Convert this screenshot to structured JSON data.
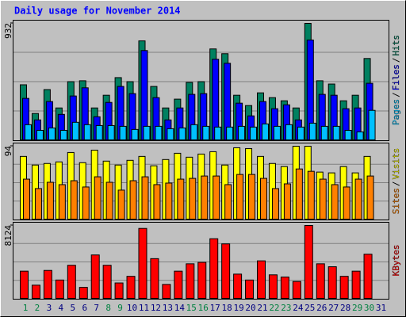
{
  "chart_data": {
    "type": "bar",
    "title": "Daily usage for November 2014",
    "categories": [
      "1",
      "2",
      "3",
      "4",
      "5",
      "6",
      "7",
      "8",
      "9",
      "10",
      "11",
      "12",
      "13",
      "14",
      "15",
      "16",
      "17",
      "18",
      "19",
      "20",
      "21",
      "22",
      "23",
      "24",
      "25",
      "26",
      "27",
      "28",
      "29",
      "30",
      "31"
    ],
    "weekends": [
      0,
      1,
      7,
      8,
      14,
      15,
      21,
      22,
      28,
      29
    ],
    "weekend_color": "#008040",
    "weekday_color": "#000080",
    "separator": "/",
    "grid": true,
    "panels": [
      {
        "ylim": [
          0,
          932
        ],
        "yticks": [
          932
        ],
        "series": [
          {
            "name": "Hits",
            "color": "#008060",
            "values": [
              444,
              216,
              406,
              260,
              469,
              476,
              260,
              361,
              501,
              469,
              793,
              431,
              260,
              330,
              463,
              469,
              729,
              691,
              361,
              279,
              380,
              342,
              317,
              260,
              932,
              476,
              450,
              317,
              361,
              653,
              null
            ]
          },
          {
            "name": "Files",
            "color": "#0000ff",
            "values": [
              336,
              165,
              311,
              209,
              355,
              420,
              190,
              304,
              431,
              374,
              716,
              342,
              165,
              260,
              368,
              374,
              647,
              615,
              298,
              197,
              311,
              254,
              285,
              165,
              800,
              368,
              361,
              254,
              260,
              456,
              null
            ]
          },
          {
            "name": "Pages",
            "color": "#00c0ff",
            "values": [
              127,
              82,
              101,
              82,
              146,
              127,
              120,
              120,
              114,
              89,
              114,
              114,
              95,
              101,
              127,
              114,
              108,
              108,
              114,
              108,
              133,
              114,
              127,
              108,
              139,
              114,
              114,
              82,
              70,
              241,
              null
            ]
          }
        ]
      },
      {
        "ylim": [
          0,
          94
        ],
        "yticks": [
          94
        ],
        "series": [
          {
            "name": "Visits",
            "color": "#ffff00",
            "values": [
              81,
              70,
              72,
              74,
              86,
              73,
              89,
              75,
              70,
              76,
              81,
              69,
              77,
              85,
              80,
              84,
              87,
              70,
              92,
              91,
              81,
              72,
              68,
              94,
              94,
              61,
              60,
              68,
              60,
              81,
              null
            ]
          },
          {
            "name": "Sites",
            "color": "#ff8000",
            "values": [
              52,
              40,
              48,
              45,
              50,
              42,
              55,
              48,
              38,
              50,
              55,
              45,
              47,
              52,
              53,
              56,
              56,
              45,
              58,
              58,
              53,
              40,
              46,
              65,
              62,
              52,
              45,
              42,
              52,
              56,
              null
            ]
          }
        ]
      },
      {
        "ylim": [
          0,
          8124
        ],
        "yticks": [
          8124
        ],
        "series": [
          {
            "name": "KBytes",
            "color": "#ff0000",
            "values": [
              3087,
              1544,
              3168,
              2112,
              3737,
              1300,
              4874,
              3737,
              1787,
              2518,
              7799,
              4468,
              1625,
              3087,
              3899,
              4062,
              6662,
              6093,
              2762,
              2112,
              4224,
              2681,
              2437,
              1950,
              8124,
              3899,
              3575,
              2518,
              3087,
              4955,
              null
            ]
          }
        ]
      }
    ]
  }
}
